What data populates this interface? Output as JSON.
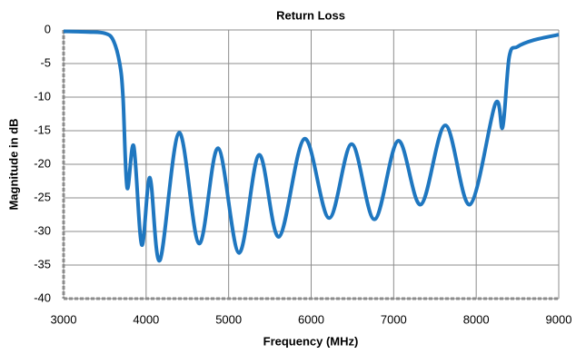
{
  "chart_data": {
    "type": "line",
    "title": "Return Loss",
    "x_label": "Frequency (MHz)",
    "y_label": "Magnitude in dB",
    "x": [
      3000,
      3300,
      3500,
      3600,
      3680,
      3720,
      3770,
      3850,
      3947,
      4046,
      4167,
      4399,
      4641,
      4872,
      5125,
      5368,
      5610,
      5918,
      6216,
      6491,
      6767,
      7053,
      7328,
      7626,
      7923,
      8231,
      8320,
      8400,
      8500,
      8700,
      9000
    ],
    "series": [
      {
        "name": "Return Loss",
        "color": "#1f77c0",
        "values": [
          -0.2,
          -0.3,
          -0.5,
          -1.5,
          -5,
          -10,
          -23.5,
          -17.3,
          -32,
          -22,
          -34.3,
          -15.3,
          -31.8,
          -17.6,
          -33.2,
          -18.6,
          -30.8,
          -16.2,
          -28,
          -17,
          -28.2,
          -16.5,
          -26,
          -14.2,
          -26,
          -11,
          -14.5,
          -4,
          -2.5,
          -1.5,
          -0.7
        ]
      }
    ],
    "xlim": [
      3000,
      9000
    ],
    "xticks": [
      3000,
      4000,
      5000,
      6000,
      7000,
      8000,
      9000
    ],
    "ylim": [
      -40,
      0
    ],
    "yticks": [
      0,
      -5,
      -10,
      -15,
      -20,
      -25,
      -30,
      -35,
      -40
    ],
    "grid": true
  }
}
